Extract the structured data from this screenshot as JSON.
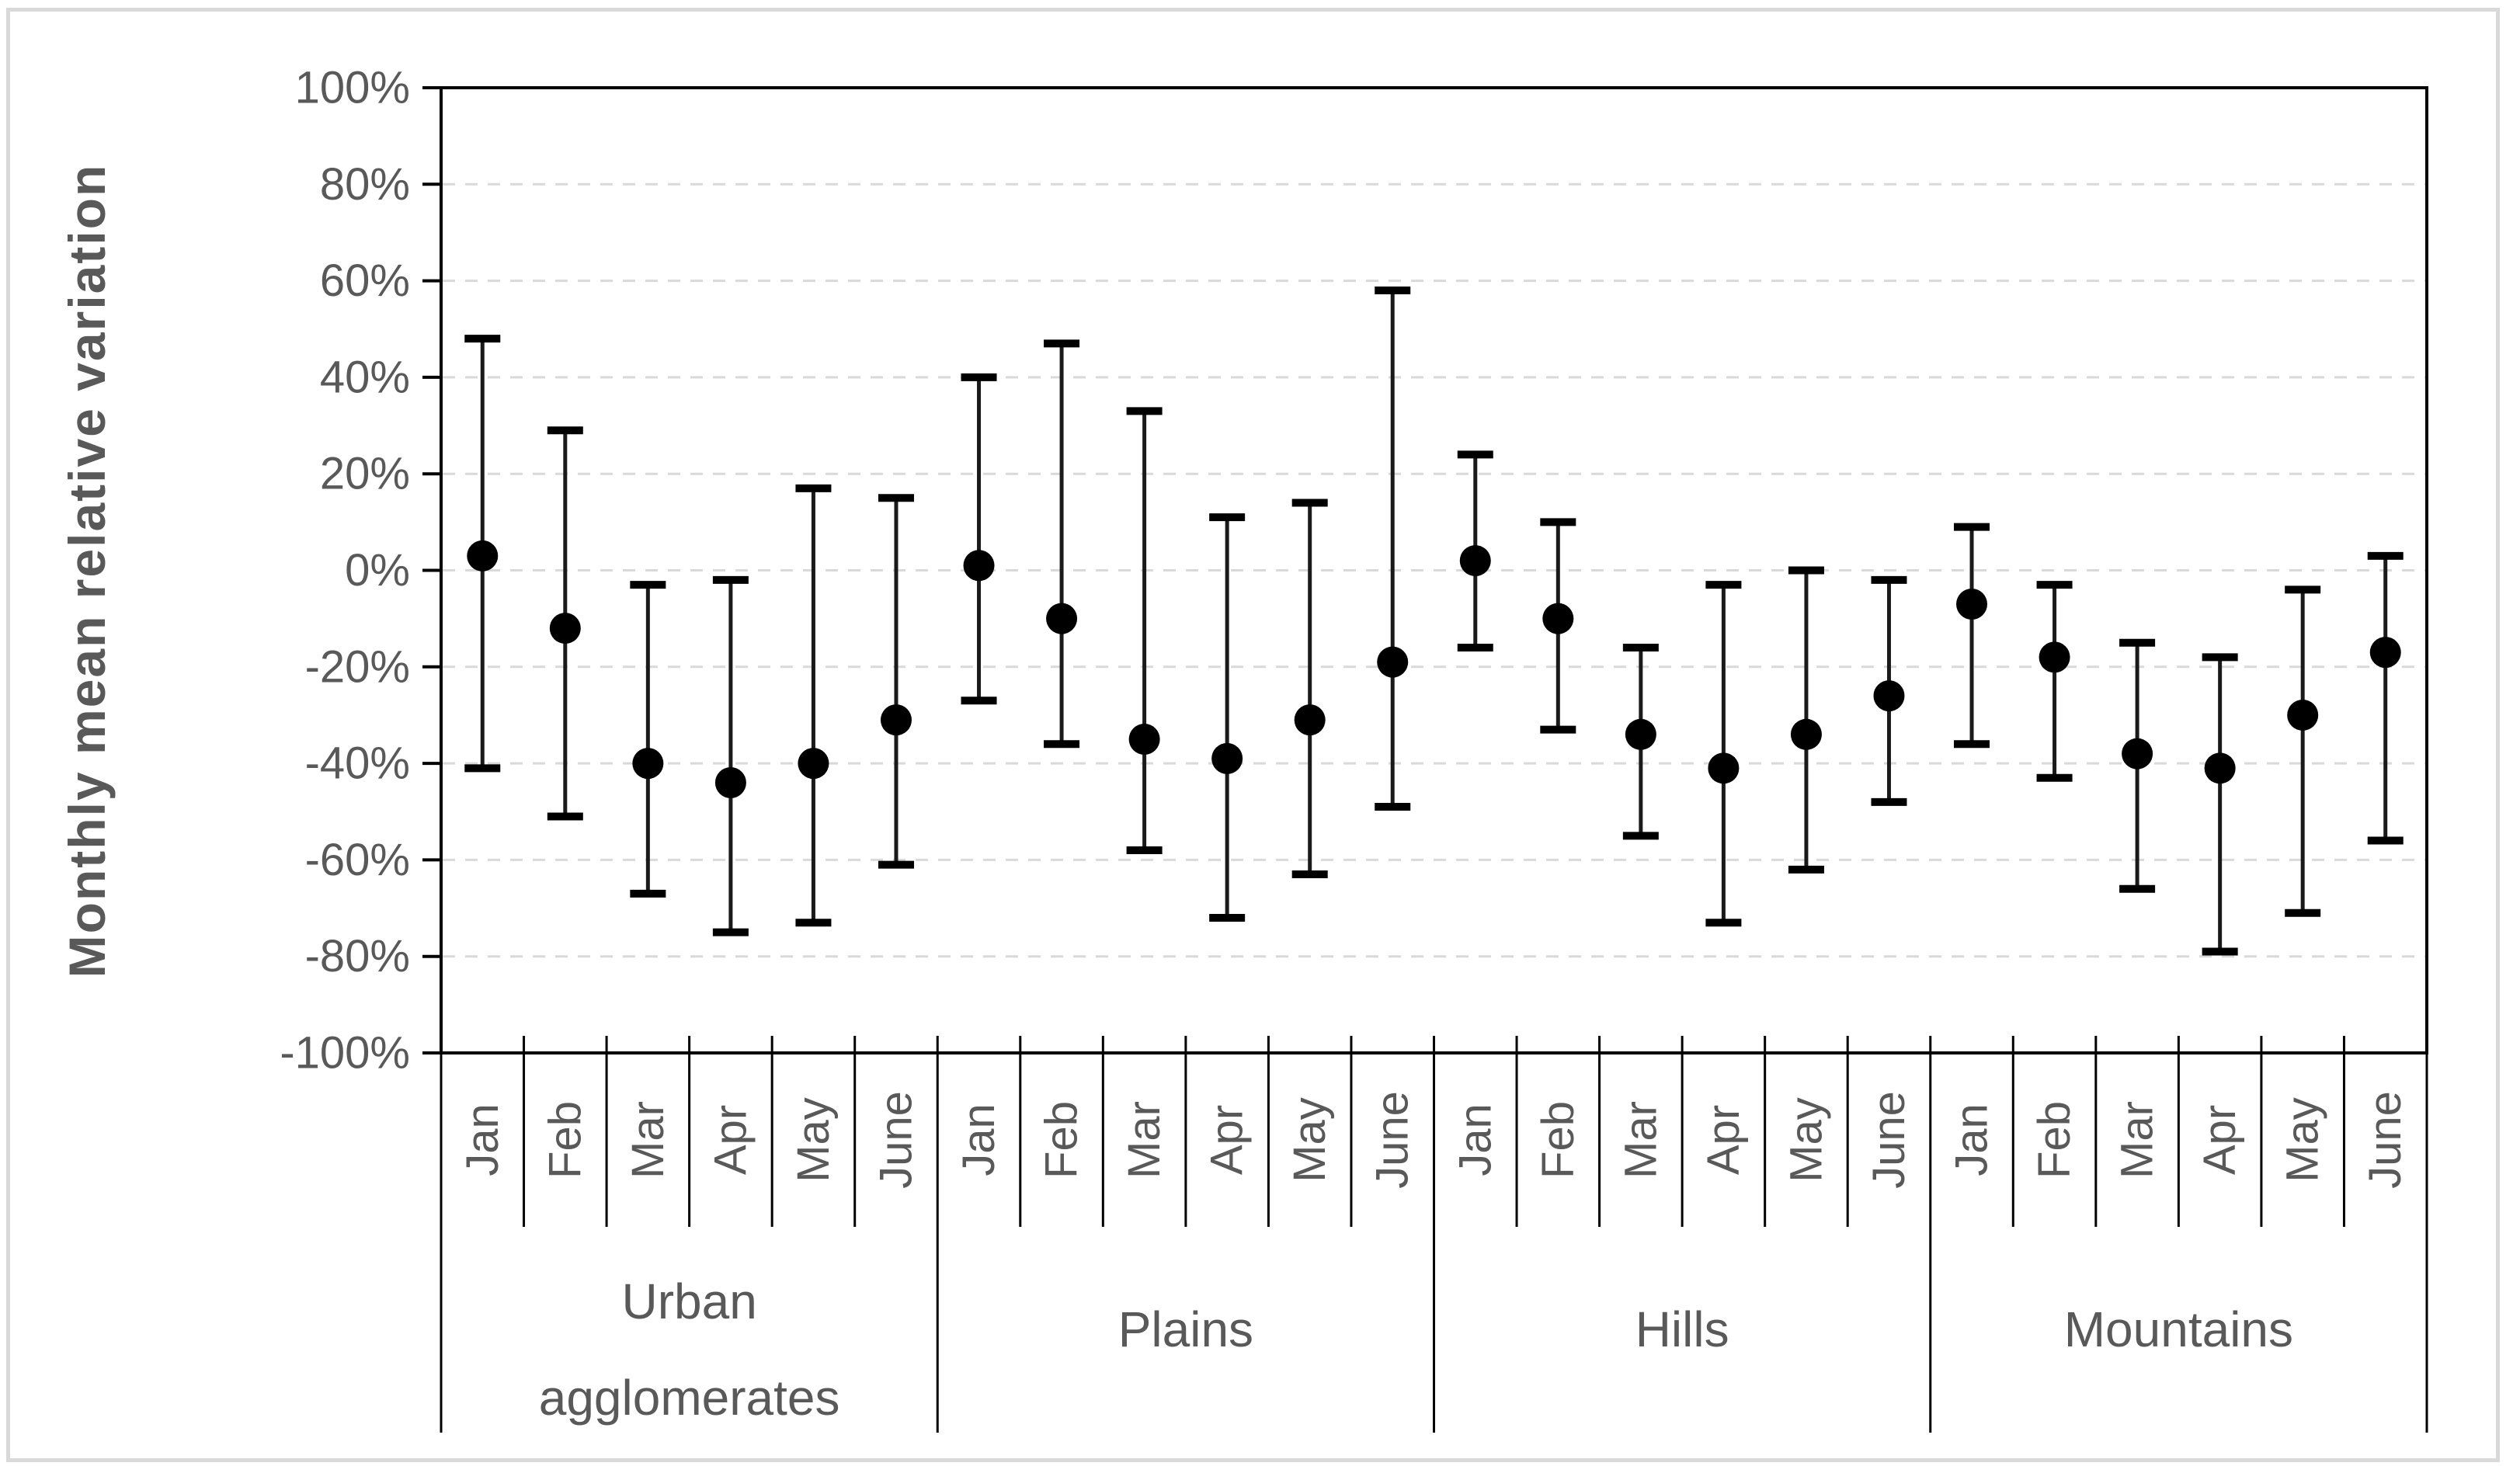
{
  "figure": {
    "background_color": "#ffffff",
    "outer_border_color": "#d9d9d9"
  },
  "chart_data": {
    "type": "scatter",
    "subtype": "mean-dot-with-error-bars",
    "title": "",
    "xlabel": "",
    "ylabel": "Monthly mean relative variation",
    "unit": "%",
    "ylim": [
      -100,
      100
    ],
    "y_tick_step": 20,
    "y_ticks": [
      {
        "value": 100,
        "label": "100%"
      },
      {
        "value": 80,
        "label": "80%"
      },
      {
        "value": 60,
        "label": "60%"
      },
      {
        "value": 40,
        "label": "40%"
      },
      {
        "value": 20,
        "label": "20%"
      },
      {
        "value": 0,
        "label": "0%"
      },
      {
        "value": -20,
        "label": "-20%"
      },
      {
        "value": -40,
        "label": "-40%"
      },
      {
        "value": -60,
        "label": "-60%"
      },
      {
        "value": -80,
        "label": "-80%"
      },
      {
        "value": -100,
        "label": "-100%"
      }
    ],
    "grid": {
      "horizontal": true,
      "style": "dashed",
      "color": "#d9d9d9"
    },
    "legend": "none",
    "axis_text_color": "#595959",
    "marker": {
      "shape": "circle",
      "color": "#000000"
    },
    "error_bar_color": "#1a1a1a",
    "groups": [
      {
        "label": "Urban agglomerates",
        "label_lines": [
          "Urban",
          "agglomerates"
        ],
        "points": [
          {
            "month": "Jan",
            "mean": 3,
            "upper": 48,
            "lower": -41
          },
          {
            "month": "Feb",
            "mean": -12,
            "upper": 29,
            "lower": -51
          },
          {
            "month": "Mar",
            "mean": -40,
            "upper": -3,
            "lower": -67
          },
          {
            "month": "Apr",
            "mean": -44,
            "upper": -2,
            "lower": -75
          },
          {
            "month": "May",
            "mean": -40,
            "upper": 17,
            "lower": -73
          },
          {
            "month": "June",
            "mean": -31,
            "upper": 15,
            "lower": -61
          }
        ]
      },
      {
        "label": "Plains",
        "label_lines": [
          "Plains"
        ],
        "points": [
          {
            "month": "Jan",
            "mean": 1,
            "upper": 40,
            "lower": -27
          },
          {
            "month": "Feb",
            "mean": -10,
            "upper": 47,
            "lower": -36
          },
          {
            "month": "Mar",
            "mean": -35,
            "upper": 33,
            "lower": -58
          },
          {
            "month": "Apr",
            "mean": -39,
            "upper": 11,
            "lower": -72
          },
          {
            "month": "May",
            "mean": -31,
            "upper": 14,
            "lower": -63
          },
          {
            "month": "June",
            "mean": -19,
            "upper": 58,
            "lower": -49
          }
        ]
      },
      {
        "label": "Hills",
        "label_lines": [
          "Hills"
        ],
        "points": [
          {
            "month": "Jan",
            "mean": 2,
            "upper": 24,
            "lower": -16
          },
          {
            "month": "Feb",
            "mean": -10,
            "upper": 10,
            "lower": -33
          },
          {
            "month": "Mar",
            "mean": -34,
            "upper": -16,
            "lower": -55
          },
          {
            "month": "Apr",
            "mean": -41,
            "upper": -3,
            "lower": -73
          },
          {
            "month": "May",
            "mean": -34,
            "upper": 0,
            "lower": -62
          },
          {
            "month": "June",
            "mean": -26,
            "upper": -2,
            "lower": -48
          }
        ]
      },
      {
        "label": "Mountains",
        "label_lines": [
          "Mountains"
        ],
        "points": [
          {
            "month": "Jan",
            "mean": -7,
            "upper": 9,
            "lower": -36
          },
          {
            "month": "Feb",
            "mean": -18,
            "upper": -3,
            "lower": -43
          },
          {
            "month": "Mar",
            "mean": -38,
            "upper": -15,
            "lower": -66
          },
          {
            "month": "Apr",
            "mean": -41,
            "upper": -18,
            "lower": -79
          },
          {
            "month": "May",
            "mean": -30,
            "upper": -4,
            "lower": -71
          },
          {
            "month": "June",
            "mean": -17,
            "upper": 3,
            "lower": -56
          }
        ]
      }
    ]
  }
}
